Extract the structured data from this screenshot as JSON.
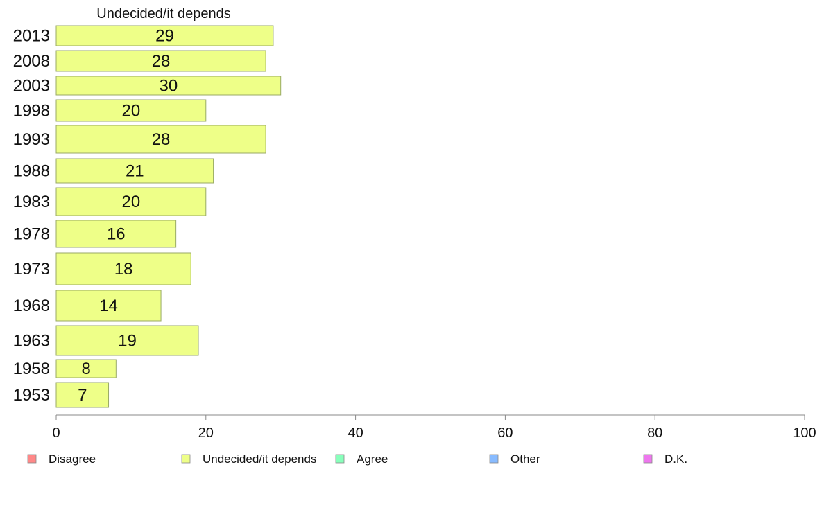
{
  "chart_data": {
    "type": "bar",
    "orientation": "horizontal",
    "series_title": "Undecided/it depends",
    "categories": [
      "2013",
      "2008",
      "2003",
      "1998",
      "1993",
      "1988",
      "1983",
      "1978",
      "1973",
      "1968",
      "1963",
      "1958",
      "1953"
    ],
    "series": [
      {
        "name": "Undecided/it depends",
        "values": [
          29,
          28,
          30,
          20,
          28,
          21,
          20,
          16,
          18,
          14,
          19,
          8,
          7
        ],
        "color": "#eeff88"
      }
    ],
    "value_labels": [
      "29",
      "28",
      "30",
      "20",
      "28",
      "21",
      "20",
      "16",
      "18",
      "14",
      "19",
      "8",
      "7"
    ],
    "xlim": [
      0,
      100
    ],
    "x_ticks": [
      0,
      20,
      40,
      60,
      80,
      100
    ],
    "x_tick_labels": [
      "0",
      "20",
      "40",
      "60",
      "80",
      "100"
    ],
    "grid": false,
    "legend": {
      "placement": "bottom",
      "items": [
        {
          "label": "Disagree",
          "color": "#ff8888"
        },
        {
          "label": "Undecided/it depends",
          "color": "#eeff88"
        },
        {
          "label": "Agree",
          "color": "#88ffbb"
        },
        {
          "label": "Other",
          "color": "#88bbff"
        },
        {
          "label": "D.K.",
          "color": "#ee77ee"
        }
      ]
    },
    "bar_stroke": "#99aa66",
    "axis_color": "#888888"
  }
}
